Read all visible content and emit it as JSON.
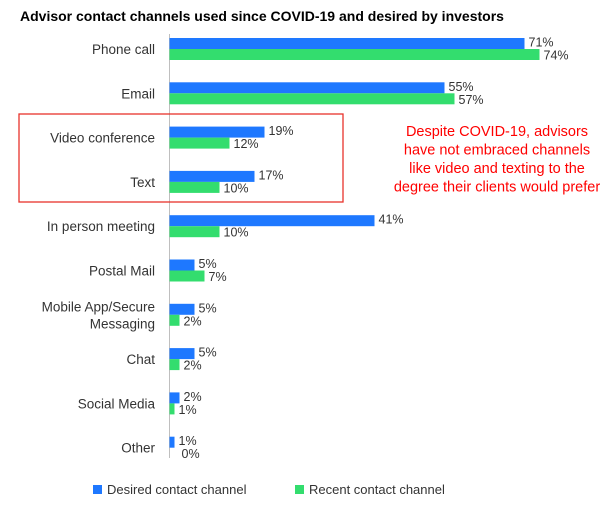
{
  "chart_data": {
    "type": "bar",
    "orientation": "horizontal",
    "title": "Advisor contact channels used since COVID-19 and desired by investors",
    "categories": [
      [
        "Phone call"
      ],
      [
        "Email"
      ],
      [
        "Video conference"
      ],
      [
        "Text"
      ],
      [
        "In person meeting"
      ],
      [
        "Postal Mail"
      ],
      [
        "Mobile App/Secure",
        "Messaging"
      ],
      [
        "Chat"
      ],
      [
        "Social Media"
      ],
      [
        "Other"
      ]
    ],
    "series": [
      {
        "name": "Desired contact channel",
        "color": "#1e78ff",
        "values": [
          71,
          55,
          19,
          17,
          41,
          5,
          5,
          5,
          2,
          1
        ]
      },
      {
        "name": "Recent contact channel",
        "color": "#33dd6e",
        "values": [
          74,
          57,
          12,
          10,
          10,
          7,
          2,
          2,
          1,
          0
        ]
      }
    ],
    "value_suffix": "%",
    "xlim": [
      0,
      100
    ],
    "grid": false,
    "legend": "bottom",
    "annotation": {
      "lines": [
        "Despite COVID-19, advisors",
        "have not embraced channels",
        "like video and texting to the",
        "degree their clients would prefer"
      ],
      "color": "#ff0000",
      "highlighted_categories": [
        "Video conference",
        "Text"
      ]
    }
  }
}
